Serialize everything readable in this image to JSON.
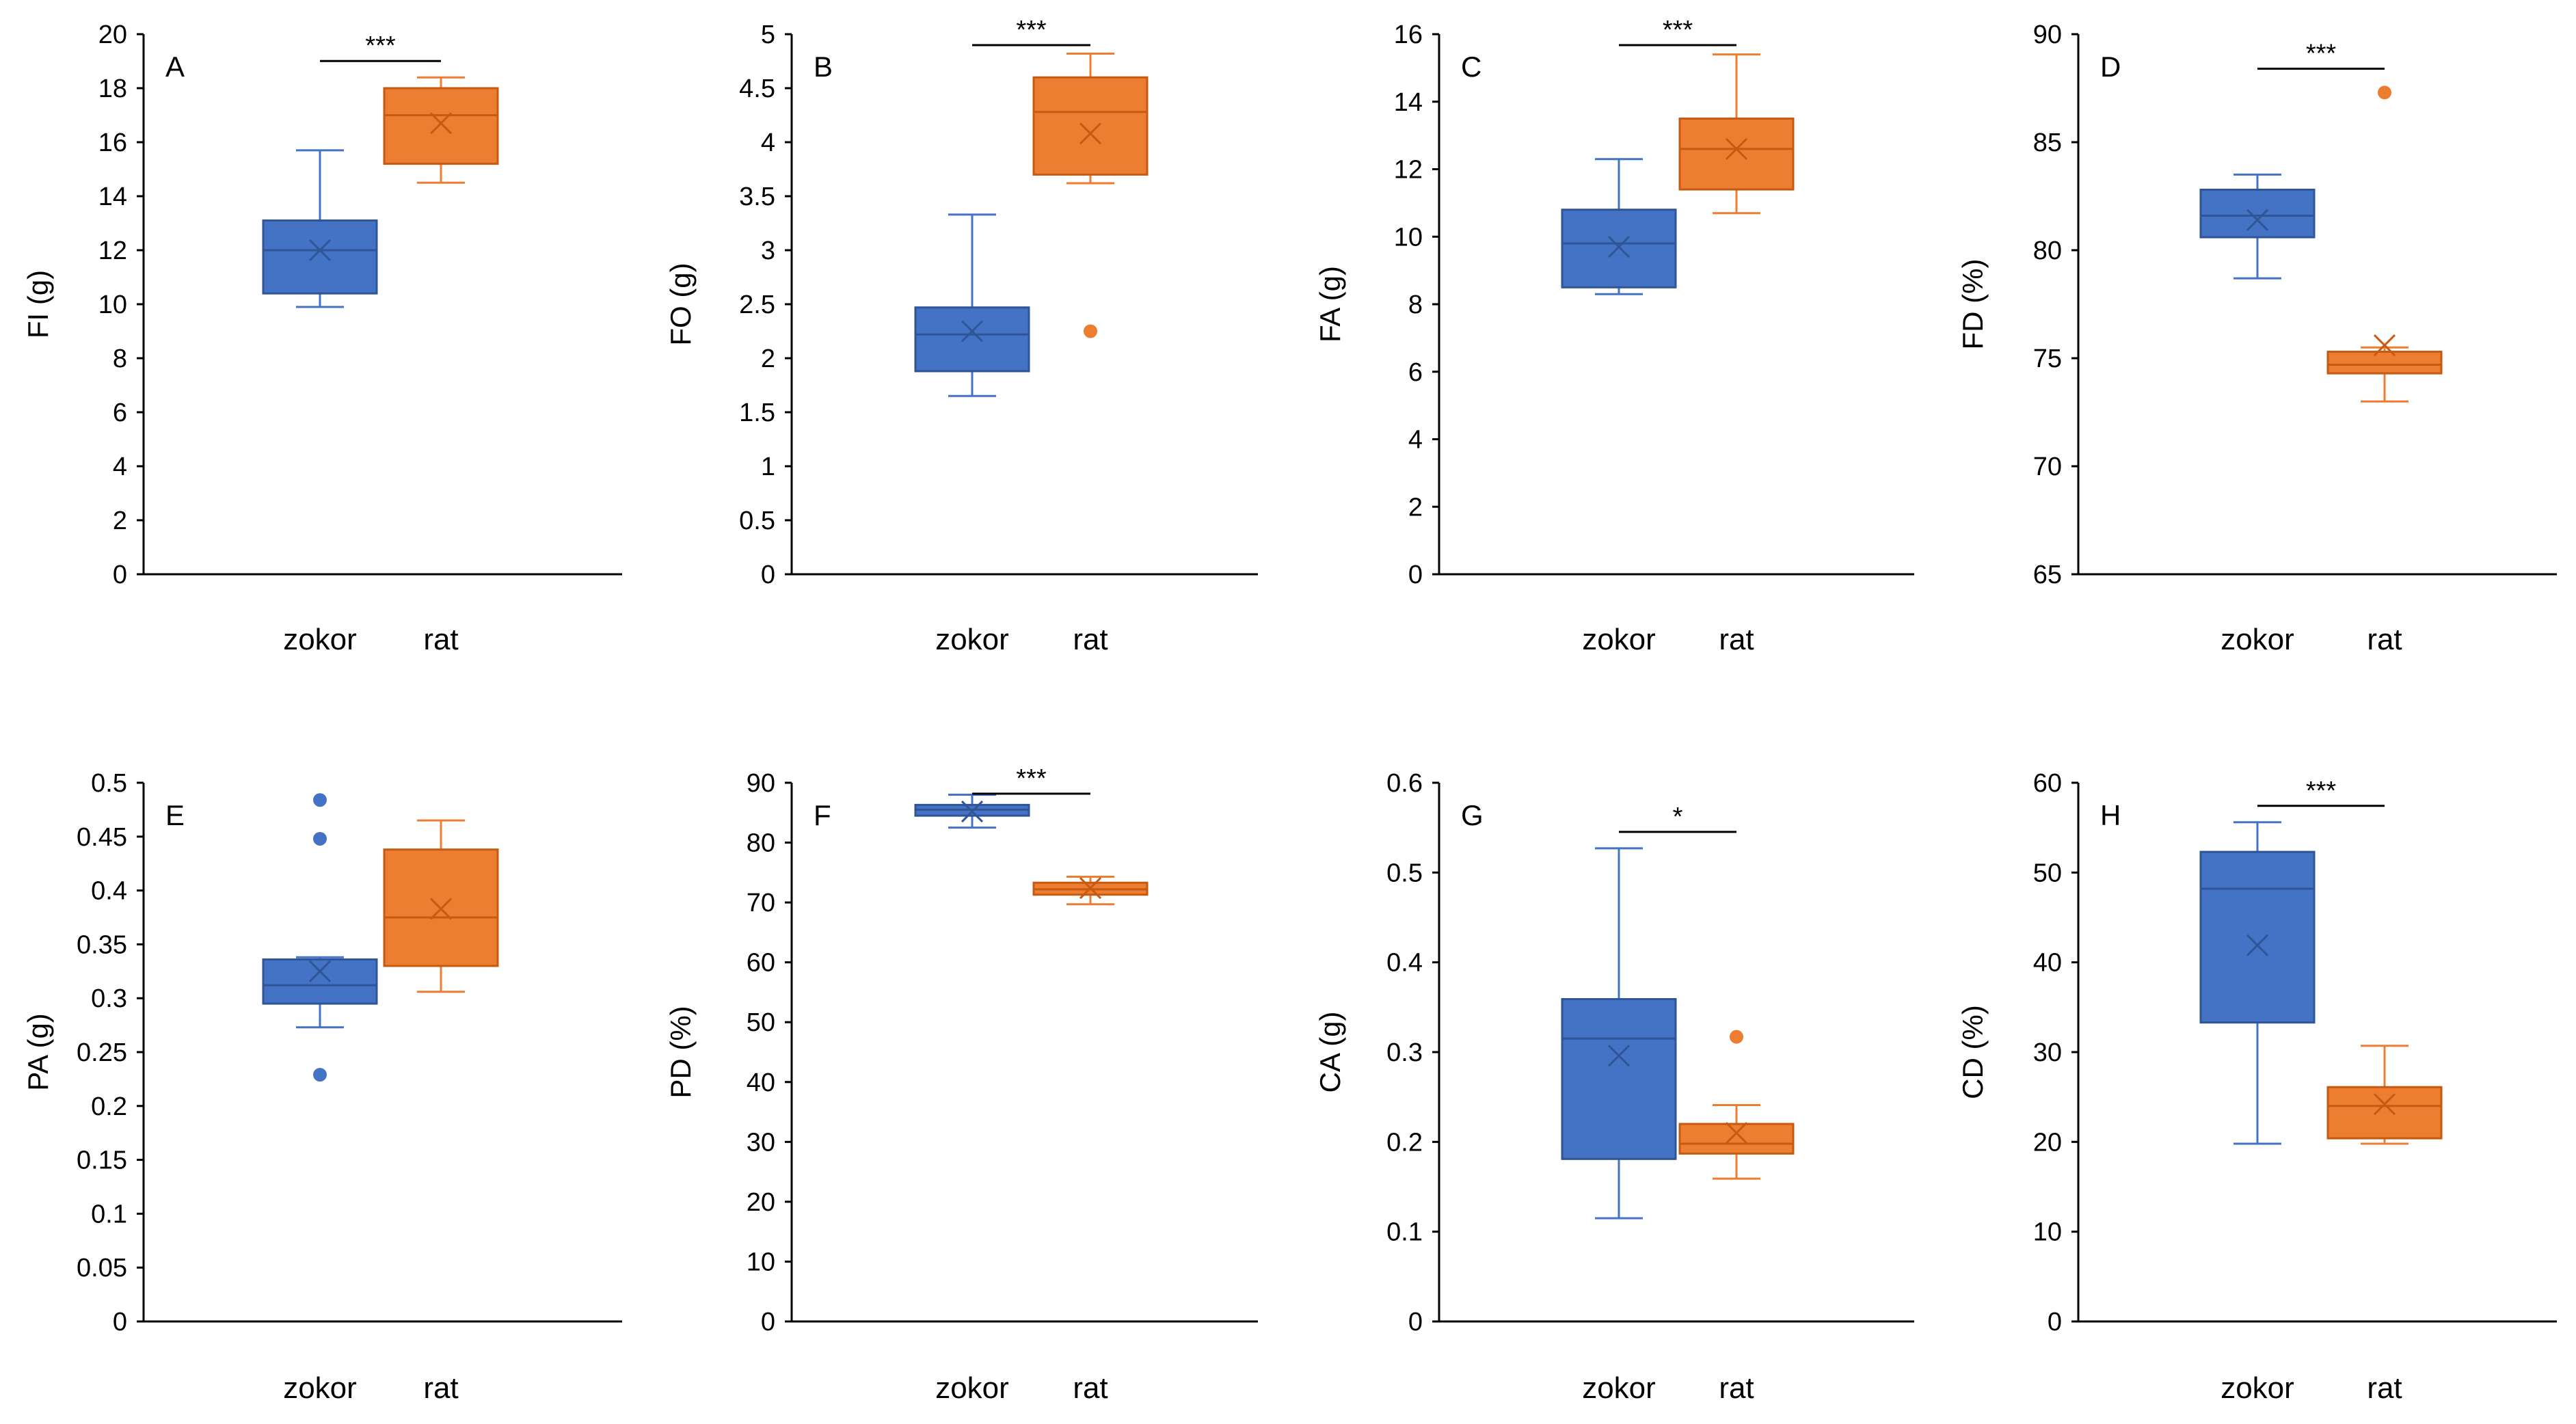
{
  "figure": {
    "category_labels": [
      "zokor",
      "rat"
    ]
  },
  "colors": {
    "zokor": "#4472C4",
    "rat": "#ED7D31",
    "zokor_edge": "#2F5597",
    "rat_edge": "#C55A11",
    "axis": "#000000"
  },
  "chart_data": [
    {
      "type": "box",
      "panel": "A",
      "ylabel": "FI (g)",
      "ylim": [
        0,
        20
      ],
      "ticks": [
        0,
        2,
        4,
        6,
        8,
        10,
        12,
        14,
        16,
        18,
        20
      ],
      "significance": "***",
      "series": [
        {
          "name": "zokor",
          "min": 9.9,
          "q1": 10.4,
          "median": 12.0,
          "q3": 13.1,
          "max": 15.7,
          "mean": 12.0,
          "outliers": []
        },
        {
          "name": "rat",
          "min": 14.5,
          "q1": 15.2,
          "median": 17.0,
          "q3": 18.0,
          "max": 18.4,
          "mean": 16.7,
          "outliers": []
        }
      ]
    },
    {
      "type": "box",
      "panel": "B",
      "ylabel": "FO (g)",
      "ylim": [
        0,
        5
      ],
      "ticks": [
        0,
        0.5,
        1,
        1.5,
        2,
        2.5,
        3,
        3.5,
        4,
        4.5,
        5
      ],
      "significance": "***",
      "series": [
        {
          "name": "zokor",
          "min": 1.65,
          "q1": 1.88,
          "median": 2.22,
          "q3": 2.47,
          "max": 3.33,
          "mean": 2.25,
          "outliers": []
        },
        {
          "name": "rat",
          "min": 3.62,
          "q1": 3.7,
          "median": 4.28,
          "q3": 4.6,
          "max": 4.82,
          "mean": 4.08,
          "outliers": [
            2.25
          ]
        }
      ]
    },
    {
      "type": "box",
      "panel": "C",
      "ylabel": "FA (g)",
      "ylim": [
        0,
        16
      ],
      "ticks": [
        0,
        2,
        4,
        6,
        8,
        10,
        12,
        14,
        16
      ],
      "significance": "***",
      "series": [
        {
          "name": "zokor",
          "min": 8.3,
          "q1": 8.5,
          "median": 9.8,
          "q3": 10.8,
          "max": 12.3,
          "mean": 9.7,
          "outliers": []
        },
        {
          "name": "rat",
          "min": 10.7,
          "q1": 11.4,
          "median": 12.6,
          "q3": 13.5,
          "max": 15.4,
          "mean": 12.6,
          "outliers": []
        }
      ]
    },
    {
      "type": "box",
      "panel": "D",
      "ylabel": "FD (%)",
      "ylim": [
        65,
        90
      ],
      "ticks": [
        65,
        70,
        75,
        80,
        85,
        90
      ],
      "significance": "***",
      "series": [
        {
          "name": "zokor",
          "min": 78.7,
          "q1": 80.6,
          "median": 81.6,
          "q3": 82.8,
          "max": 83.5,
          "mean": 81.4,
          "outliers": []
        },
        {
          "name": "rat",
          "min": 73.0,
          "q1": 74.3,
          "median": 74.7,
          "q3": 75.3,
          "max": 75.5,
          "mean": 75.6,
          "outliers": [
            87.3
          ]
        }
      ]
    },
    {
      "type": "box",
      "panel": "E",
      "ylabel": "PA (g)",
      "ylim": [
        0,
        0.5
      ],
      "ticks": [
        0,
        0.05,
        0.1,
        0.15,
        0.2,
        0.25,
        0.3,
        0.35,
        0.4,
        0.45,
        0.5
      ],
      "significance": "",
      "series": [
        {
          "name": "zokor",
          "min": 0.273,
          "q1": 0.295,
          "median": 0.312,
          "q3": 0.336,
          "max": 0.338,
          "mean": 0.325,
          "outliers": [
            0.229,
            0.448,
            0.484
          ]
        },
        {
          "name": "rat",
          "min": 0.306,
          "q1": 0.33,
          "median": 0.375,
          "q3": 0.438,
          "max": 0.465,
          "mean": 0.383,
          "outliers": []
        }
      ]
    },
    {
      "type": "box",
      "panel": "F",
      "ylabel": "PD (%)",
      "ylim": [
        0,
        90
      ],
      "ticks": [
        0,
        10,
        20,
        30,
        40,
        50,
        60,
        70,
        80,
        90
      ],
      "significance": "***",
      "series": [
        {
          "name": "zokor",
          "min": 82.5,
          "q1": 84.5,
          "median": 85.5,
          "q3": 86.3,
          "max": 88.0,
          "mean": 85.2,
          "outliers": []
        },
        {
          "name": "rat",
          "min": 69.7,
          "q1": 71.3,
          "median": 72.2,
          "q3": 73.3,
          "max": 74.3,
          "mean": 72.4,
          "outliers": []
        }
      ]
    },
    {
      "type": "box",
      "panel": "G",
      "ylabel": "CA (g)",
      "ylim": [
        0,
        0.6
      ],
      "ticks": [
        0,
        0.1,
        0.2,
        0.3,
        0.4,
        0.5,
        0.6
      ],
      "significance": "*",
      "series": [
        {
          "name": "zokor",
          "min": 0.115,
          "q1": 0.181,
          "median": 0.315,
          "q3": 0.359,
          "max": 0.527,
          "mean": 0.296,
          "outliers": []
        },
        {
          "name": "rat",
          "min": 0.159,
          "q1": 0.187,
          "median": 0.198,
          "q3": 0.22,
          "max": 0.241,
          "mean": 0.21,
          "outliers": [
            0.317
          ]
        }
      ]
    },
    {
      "type": "box",
      "panel": "H",
      "ylabel": "CD (%)",
      "ylim": [
        0,
        60
      ],
      "ticks": [
        0,
        10,
        20,
        30,
        40,
        50,
        60
      ],
      "significance": "***",
      "series": [
        {
          "name": "zokor",
          "min": 19.8,
          "q1": 33.3,
          "median": 48.2,
          "q3": 52.3,
          "max": 55.6,
          "mean": 41.9,
          "outliers": []
        },
        {
          "name": "rat",
          "min": 19.8,
          "q1": 20.4,
          "median": 24.0,
          "q3": 26.1,
          "max": 30.7,
          "mean": 24.2,
          "outliers": []
        }
      ]
    }
  ]
}
